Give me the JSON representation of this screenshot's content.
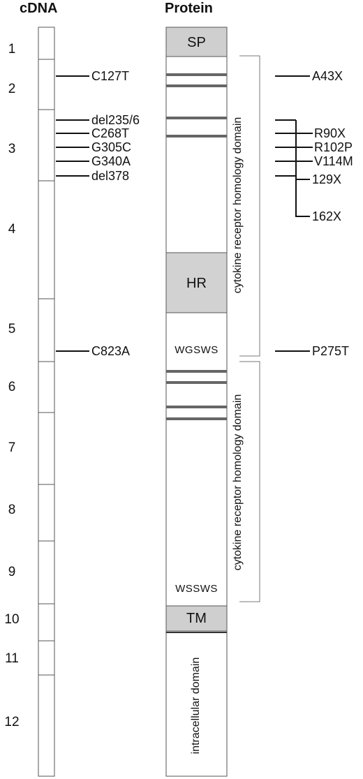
{
  "headers": {
    "cdna": "cDNA",
    "protein": "Protein"
  },
  "exons": [
    "1",
    "2",
    "3",
    "4",
    "5",
    "6",
    "7",
    "8",
    "9",
    "10",
    "11",
    "12"
  ],
  "cdna_mutations": [
    "C127T",
    "del235/6",
    "C268T",
    "G305C",
    "G340A",
    "del378",
    "C823A"
  ],
  "protein_mutations": [
    "A43X",
    "R90X",
    "R102P",
    "V114M",
    "129X",
    "162X",
    "P275T"
  ],
  "domains": {
    "sp": "SP",
    "hr": "HR",
    "tm": "TM",
    "motif1": "WGSWS",
    "motif2": "WSSWS",
    "crh1": "cytokine receptor homology domain",
    "crh2": "cytokine receptor homology domain",
    "intracellular": "intracellular domain"
  },
  "colors": {
    "shaded": "#cfcfcf",
    "line": "#111111"
  }
}
